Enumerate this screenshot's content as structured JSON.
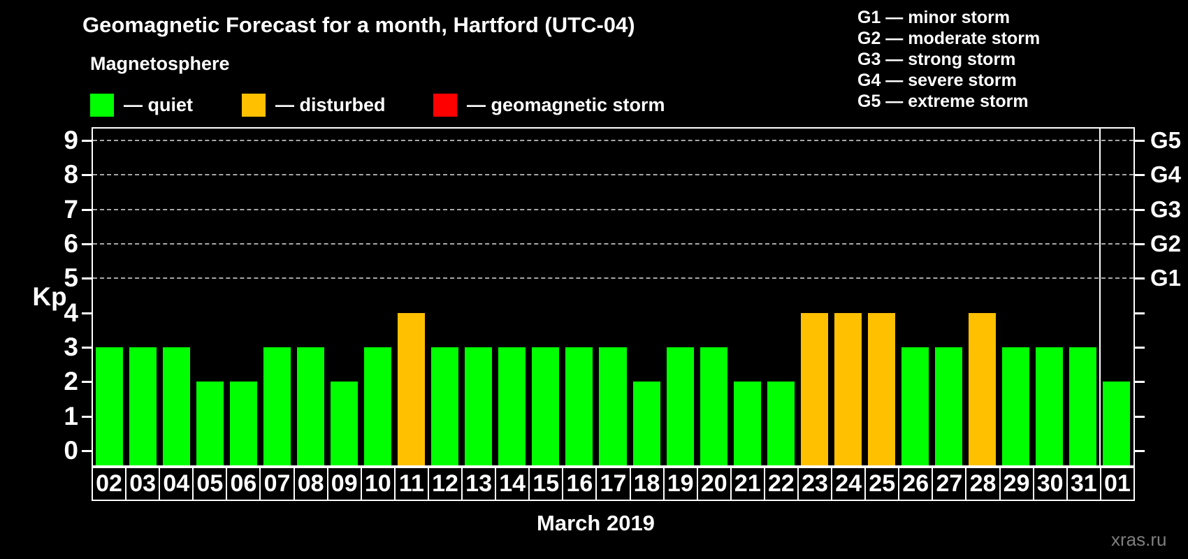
{
  "header": {
    "title": "Geomagnetic Forecast for a month, Hartford (UTC-04)",
    "subtitle": "Magnetosphere"
  },
  "legend": {
    "items": [
      {
        "name": "quiet",
        "label": "— quiet",
        "color": "#00FF00"
      },
      {
        "name": "disturbed",
        "label": "— disturbed",
        "color": "#FFC000"
      },
      {
        "name": "geomagnetic-storm",
        "label": "— geomagnetic storm",
        "color": "#FF0000"
      }
    ]
  },
  "storm_scale_legend": {
    "lines": [
      "G1 — minor storm",
      "G2 — moderate storm",
      "G3 — strong storm",
      "G4 — severe storm",
      "G5 — extreme storm"
    ]
  },
  "chart_data": {
    "type": "bar",
    "title": "Geomagnetic Forecast for a month, Hartford (UTC-04)",
    "ylabel": "Kp",
    "xlabel": "March 2019",
    "ylim": [
      0,
      9
    ],
    "grid": "dashed horizontal at Kp 5-9",
    "legend_position": "top",
    "categories": [
      "02",
      "03",
      "04",
      "05",
      "06",
      "07",
      "08",
      "09",
      "10",
      "11",
      "12",
      "13",
      "14",
      "15",
      "16",
      "17",
      "18",
      "19",
      "20",
      "21",
      "22",
      "23",
      "24",
      "25",
      "26",
      "27",
      "28",
      "29",
      "30",
      "31",
      "01"
    ],
    "values": [
      3,
      3,
      3,
      2,
      2,
      3,
      3,
      2,
      3,
      4,
      3,
      3,
      3,
      3,
      3,
      3,
      2,
      3,
      3,
      2,
      2,
      4,
      4,
      4,
      3,
      3,
      4,
      3,
      3,
      3,
      2
    ],
    "states": [
      "quiet",
      "quiet",
      "quiet",
      "quiet",
      "quiet",
      "quiet",
      "quiet",
      "quiet",
      "quiet",
      "disturbed",
      "quiet",
      "quiet",
      "quiet",
      "quiet",
      "quiet",
      "quiet",
      "quiet",
      "quiet",
      "quiet",
      "quiet",
      "quiet",
      "disturbed",
      "disturbed",
      "disturbed",
      "quiet",
      "quiet",
      "disturbed",
      "quiet",
      "quiet",
      "quiet",
      "quiet"
    ],
    "state_colors": {
      "quiet": "#00FF00",
      "disturbed": "#FFC000",
      "storm": "#FF0000"
    },
    "y_ticks": [
      0,
      1,
      2,
      3,
      4,
      5,
      6,
      7,
      8,
      9
    ],
    "gridlines_at": [
      5,
      6,
      7,
      8,
      9
    ],
    "right_axis_labels": [
      {
        "label": "G1",
        "kp": 5
      },
      {
        "label": "G2",
        "kp": 6
      },
      {
        "label": "G3",
        "kp": 7
      },
      {
        "label": "G4",
        "kp": 8
      },
      {
        "label": "G5",
        "kp": 9
      }
    ],
    "separator_after_category": "31"
  },
  "footer": {
    "watermark": "xras.ru"
  }
}
